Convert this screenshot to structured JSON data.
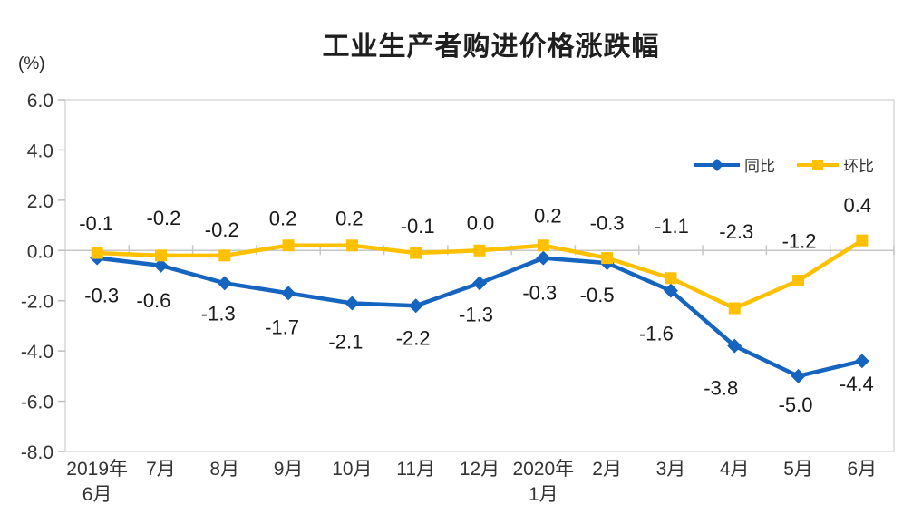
{
  "chart_data": {
    "type": "line",
    "title": "工业生产者购进价格涨跌幅",
    "unit_label": "(%)",
    "categories": [
      "2019年\n6月",
      "7月",
      "8月",
      "9月",
      "10月",
      "11月",
      "12月",
      "2020年\n1月",
      "2月",
      "3月",
      "4月",
      "5月",
      "6月"
    ],
    "series": [
      {
        "name": "同比",
        "marker": "diamond",
        "color": "#1565C0",
        "values": [
          -0.3,
          -0.6,
          -1.3,
          -1.7,
          -2.1,
          -2.2,
          -1.3,
          -0.3,
          -0.5,
          -1.6,
          -3.8,
          -5.0,
          -4.4
        ]
      },
      {
        "name": "环比",
        "marker": "square",
        "color": "#FFC000",
        "values": [
          -0.1,
          -0.2,
          -0.2,
          0.2,
          0.2,
          -0.1,
          0.0,
          0.2,
          -0.3,
          -1.1,
          -2.3,
          -1.2,
          0.4
        ]
      }
    ],
    "y_ticks": [
      6.0,
      4.0,
      2.0,
      0.0,
      -2.0,
      -4.0,
      -6.0,
      -8.0
    ],
    "ylim": [
      -8.0,
      6.0
    ],
    "grid": false,
    "data_labels": true,
    "legend_position": "inside-top-right",
    "colors": {
      "border": "#D9D9D9",
      "axis": "#BFBFBF",
      "zero_line": "#C6C6C6",
      "text": "#333333",
      "background": "#FFFFFF"
    }
  }
}
